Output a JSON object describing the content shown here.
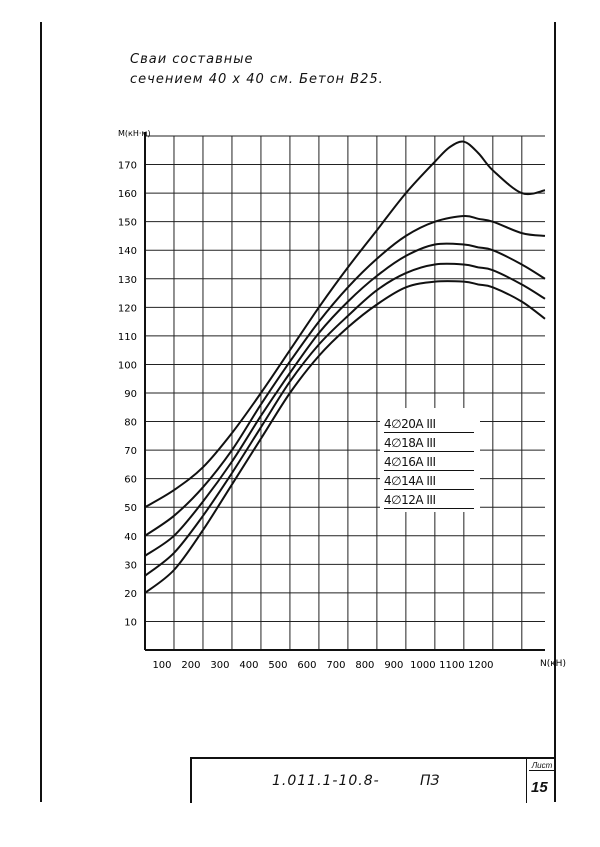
{
  "title_line1": "Сваи   составные",
  "title_line2": "сечением  40 х 40 см.  Бетон В25.",
  "chart_data": {
    "type": "line",
    "ylabel": "М(кН·м)",
    "xlabel": "N(кН)",
    "x_ticks": [
      100,
      200,
      300,
      400,
      500,
      600,
      700,
      800,
      900,
      1000,
      1100,
      1200
    ],
    "x_tick_labels": [
      "100",
      "200",
      "300",
      "400",
      "500",
      "600",
      "700",
      "800",
      "900",
      "1000",
      "1100",
      "1200"
    ],
    "y_ticks": [
      10,
      20,
      30,
      40,
      50,
      60,
      70,
      80,
      90,
      100,
      110,
      120,
      130,
      140,
      150,
      160,
      170
    ],
    "y_tick_labels": [
      "10",
      "20",
      "30",
      "40",
      "50",
      "60",
      "70",
      "80",
      "90",
      "100",
      "110",
      "120",
      "130",
      "140",
      "150",
      "160",
      "170"
    ],
    "xlim": [
      0,
      1380
    ],
    "ylim": [
      0,
      180
    ],
    "grid": true,
    "legend_position": "right",
    "series": [
      {
        "name": "4∅20А III",
        "x": [
          0,
          100,
          200,
          300,
          400,
          500,
          600,
          700,
          800,
          900,
          1000,
          1050,
          1100,
          1150,
          1200,
          1300,
          1380
        ],
        "y": [
          50,
          56,
          64,
          76,
          90,
          105,
          120,
          134,
          147,
          160,
          171,
          176,
          178,
          174,
          168,
          160,
          161
        ]
      },
      {
        "name": "4∅18А III",
        "x": [
          0,
          100,
          200,
          300,
          400,
          500,
          600,
          700,
          800,
          900,
          1000,
          1100,
          1150,
          1200,
          1300,
          1380
        ],
        "y": [
          40,
          47,
          57,
          70,
          86,
          101,
          115,
          127,
          137,
          145,
          150,
          152,
          151,
          150,
          146,
          145
        ]
      },
      {
        "name": "4∅16А III",
        "x": [
          0,
          100,
          200,
          300,
          400,
          500,
          600,
          700,
          800,
          900,
          1000,
          1100,
          1150,
          1200,
          1300,
          1380
        ],
        "y": [
          33,
          40,
          52,
          66,
          82,
          97,
          111,
          122,
          131,
          138,
          142,
          142,
          141,
          140,
          135,
          130
        ]
      },
      {
        "name": "4∅14А III",
        "x": [
          0,
          100,
          200,
          300,
          400,
          500,
          600,
          700,
          800,
          900,
          1000,
          1100,
          1150,
          1200,
          1300,
          1380
        ],
        "y": [
          26,
          34,
          47,
          62,
          78,
          94,
          107,
          117,
          126,
          132,
          135,
          135,
          134,
          133,
          128,
          123
        ]
      },
      {
        "name": "4∅12А III",
        "x": [
          0,
          100,
          200,
          300,
          400,
          500,
          600,
          700,
          800,
          900,
          1000,
          1100,
          1150,
          1200,
          1300,
          1380
        ],
        "y": [
          20,
          28,
          42,
          58,
          74,
          90,
          103,
          113,
          121,
          127,
          129,
          129,
          128,
          127,
          122,
          116
        ]
      }
    ]
  },
  "stamp": {
    "doc_number": "1.011.1-10.8-",
    "code": "ПЗ",
    "sheet_label": "Лист",
    "sheet_number": "15"
  }
}
